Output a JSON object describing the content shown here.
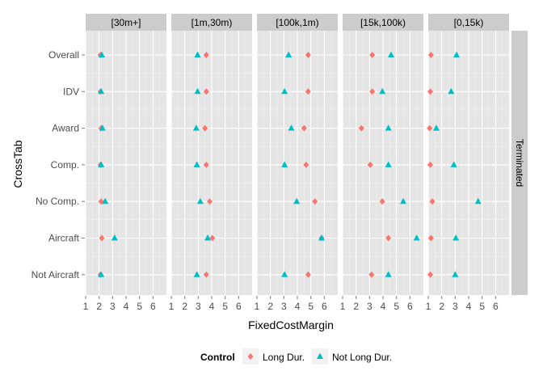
{
  "chart_data": {
    "type": "scatter",
    "xlabel": "FixedCostMargin",
    "ylabel": "CrossTab",
    "xlim": [
      1,
      7
    ],
    "x_ticks": [
      1,
      2,
      3,
      4,
      5,
      6
    ],
    "grid": true,
    "legend_position": "bottom",
    "facet_columns": [
      "[30m+]",
      "[1m,30m)",
      "[100k,1m)",
      "[15k,100k)",
      "[0,15k)"
    ],
    "facet_row": "Terminated",
    "categories": [
      "Overall",
      "IDV",
      "Award",
      "Comp.",
      "No Comp.",
      "Aircraft",
      "Not Aircraft"
    ],
    "legend": {
      "title": "Control",
      "entries": [
        {
          "label": "Long Dur.",
          "color": "#F8766D",
          "shape": "diamond"
        },
        {
          "label": "Not Long Dur.",
          "color": "#00BFC4",
          "shape": "triangle"
        }
      ]
    },
    "series": [
      {
        "name": "Long Dur.",
        "color": "#F8766D",
        "shape": "diamond",
        "panels": [
          [
            2.1,
            2.1,
            2.15,
            2.1,
            2.15,
            2.2,
            2.1
          ],
          [
            3.6,
            3.6,
            3.5,
            3.6,
            3.85,
            4.05,
            3.6
          ],
          [
            4.8,
            4.8,
            4.5,
            4.65,
            5.3,
            5.8,
            4.8
          ],
          [
            3.2,
            3.2,
            2.4,
            3.05,
            3.95,
            4.4,
            3.15
          ],
          [
            1.2,
            1.15,
            1.1,
            1.15,
            1.3,
            1.2,
            1.15
          ]
        ]
      },
      {
        "name": "Not Long Dur.",
        "color": "#00BFC4",
        "shape": "triangle",
        "panels": [
          [
            2.2,
            2.15,
            2.25,
            2.15,
            2.45,
            3.15,
            2.15
          ],
          [
            2.95,
            2.95,
            2.85,
            2.9,
            3.15,
            3.7,
            2.9
          ],
          [
            3.35,
            3.05,
            3.55,
            3.05,
            3.95,
            5.8,
            3.05
          ],
          [
            4.6,
            3.95,
            4.4,
            4.4,
            5.5,
            6.5,
            4.4
          ],
          [
            3.1,
            2.7,
            1.6,
            2.9,
            4.7,
            3.05,
            3.0
          ]
        ]
      }
    ]
  }
}
